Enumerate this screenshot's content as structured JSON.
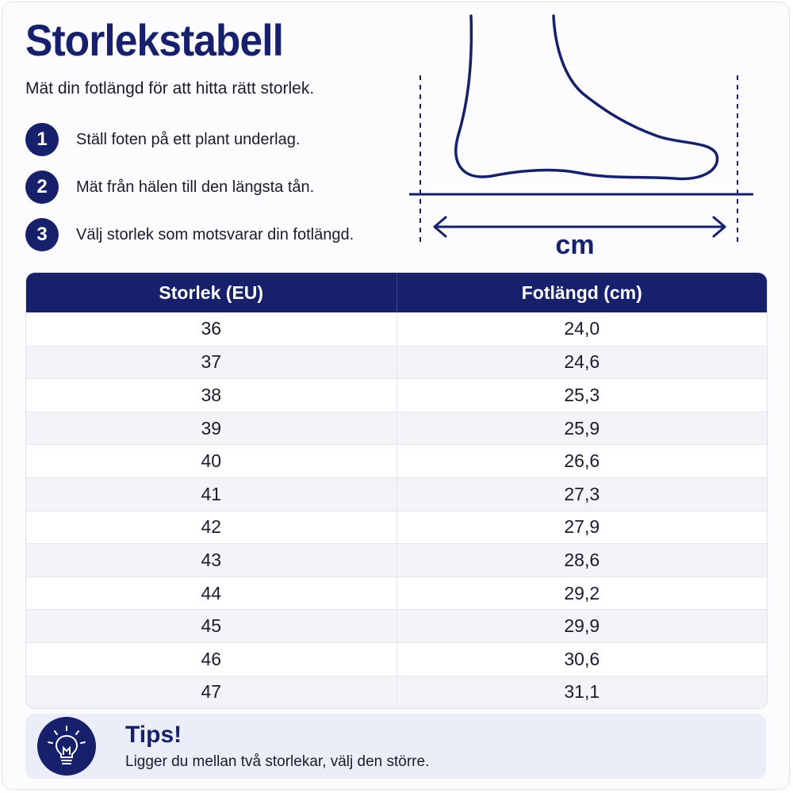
{
  "title": "Storlekstabell",
  "subtitle": "Mät din fotlängd för att hitta rätt storlek.",
  "steps": [
    {
      "num": "1",
      "text": "Ställ foten på ett plant underlag."
    },
    {
      "num": "2",
      "text": "Mät från hälen till den längsta tån."
    },
    {
      "num": "3",
      "text": "Välj storlek som motsvarar din fotlängd."
    }
  ],
  "illustration": {
    "unit_label": "cm",
    "icon": "foot-measurement-icon"
  },
  "table": {
    "headers": [
      "Storlek (EU)",
      "Fotlängd (cm)"
    ],
    "rows": [
      [
        "36",
        "24,0"
      ],
      [
        "37",
        "24,6"
      ],
      [
        "38",
        "25,3"
      ],
      [
        "39",
        "25,9"
      ],
      [
        "40",
        "26,6"
      ],
      [
        "41",
        "27,3"
      ],
      [
        "42",
        "27,9"
      ],
      [
        "43",
        "28,6"
      ],
      [
        "44",
        "29,2"
      ],
      [
        "45",
        "29,9"
      ],
      [
        "46",
        "30,6"
      ],
      [
        "47",
        "31,1"
      ]
    ]
  },
  "tips": {
    "icon": "lightbulb-icon",
    "title": "Tips!",
    "text": "Ligger du mellan två storlekar, välj den större."
  },
  "colors": {
    "primary": "#16206b",
    "row_alt": "#f3f3f8",
    "tips_bg": "#ebedf9"
  }
}
